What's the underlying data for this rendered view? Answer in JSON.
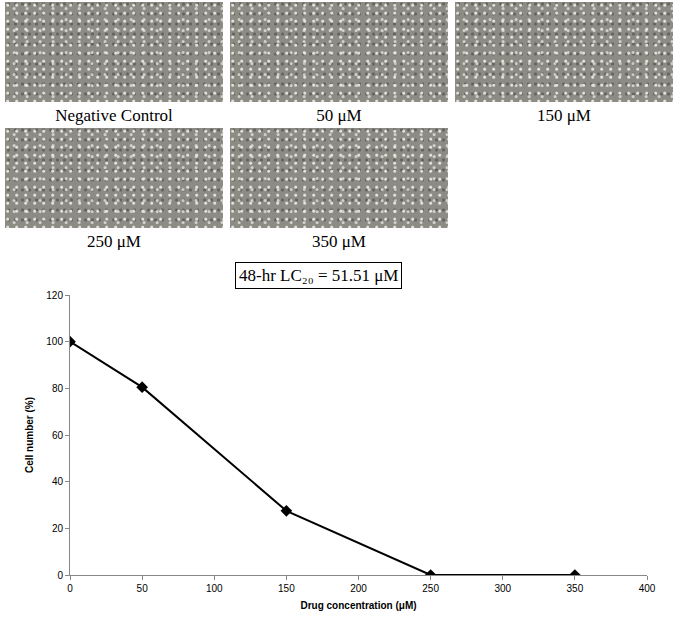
{
  "panels": [
    {
      "label": "Negative Control"
    },
    {
      "label": "50 μM"
    },
    {
      "label": "150 μM"
    },
    {
      "label": "250 μM"
    },
    {
      "label": "350 μM"
    }
  ],
  "chart_data": {
    "type": "line",
    "annotation": "48-hr LC₂₀ = 51.51 μM",
    "x_label": "Drug concentration (μM)",
    "y_label": "Cell number (%)",
    "x": [
      0,
      50,
      150,
      250,
      350
    ],
    "values": [
      100,
      80.5,
      27.5,
      0,
      0
    ],
    "color": "#000000",
    "marker": "diamond",
    "xlim": [
      0,
      400
    ],
    "xticks": [
      0,
      50,
      100,
      150,
      200,
      250,
      300,
      350,
      400
    ],
    "ylim": [
      0,
      120
    ],
    "yticks": [
      0,
      20,
      40,
      60,
      80,
      100,
      120
    ],
    "grid": false
  }
}
